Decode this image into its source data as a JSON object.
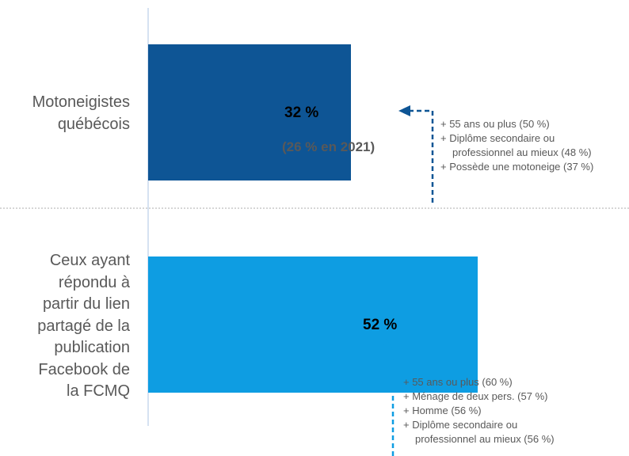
{
  "chart_data": {
    "type": "bar",
    "orientation": "horizontal",
    "categories": [
      "Motoneigistes québécois",
      "Ceux ayant répondu à partir du lien partagé de la publication Facebook de la FCMQ"
    ],
    "values": [
      32,
      52
    ],
    "value_labels": [
      "32 %",
      "52 %"
    ],
    "value_sublabels": [
      "(26 % en 2021)",
      ""
    ],
    "colors": [
      "#0E5595",
      "#0E9DE2"
    ],
    "xlim": [
      0,
      100
    ],
    "legend": "none",
    "grid": false,
    "annotations": [
      {
        "arrow_color": "#0E5595",
        "lines": [
          {
            "text": "+ 55 ans ou plus (50 %)",
            "indent": false
          },
          {
            "text": "+ Diplôme secondaire ou",
            "indent": false
          },
          {
            "text": "professionnel au mieux (48 %)",
            "indent": true
          },
          {
            "text": "+ Possède une motoneige (37 %)",
            "indent": false
          }
        ]
      },
      {
        "arrow_color": "#0E9DE2",
        "lines": [
          {
            "text": "+ 55 ans ou plus (60 %)",
            "indent": false
          },
          {
            "text": "+ Ménage de deux pers. (57 %)",
            "indent": false
          },
          {
            "text": "+ Homme (56 %)",
            "indent": false
          },
          {
            "text": "+ Diplôme secondaire ou",
            "indent": false
          },
          {
            "text": "professionnel au mieux (56 %)",
            "indent": true
          }
        ]
      }
    ]
  }
}
